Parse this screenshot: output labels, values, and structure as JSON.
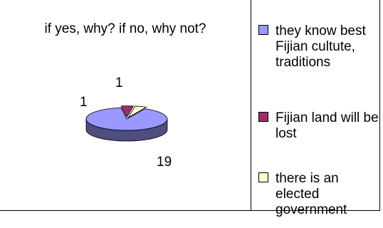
{
  "chart_data": {
    "type": "pie",
    "title": "if yes, why? if no, why not?",
    "style": "3d-exploded",
    "legend_position": "right",
    "slices": [
      {
        "label": "they know best Fijian cultute, traditions",
        "value": 19,
        "color": "#9999ff"
      },
      {
        "label": "Fijian land will be lost",
        "value": 1,
        "color": "#993366"
      },
      {
        "label": "there is an elected government",
        "value": 1,
        "color": "#ffffcc"
      }
    ]
  }
}
